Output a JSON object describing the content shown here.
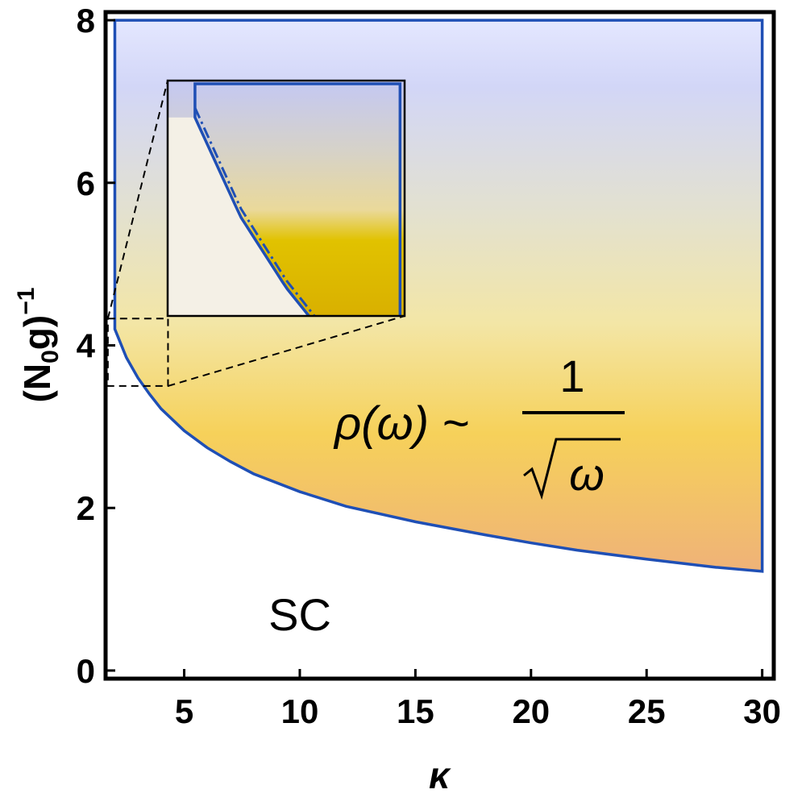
{
  "chart_data": {
    "type": "area",
    "xlabel": "κ",
    "ylabel": "(N",
    "ylabel_sub": "0",
    "ylabel_tail": "g)",
    "ylabel_sup": "−1",
    "xlim": [
      1.6,
      30.5
    ],
    "ylim": [
      -0.1,
      8.1
    ],
    "xticks": [
      "5",
      "10",
      "15",
      "20",
      "25",
      "30"
    ],
    "yticks": [
      "0",
      "2",
      "4",
      "6",
      "8"
    ],
    "x_tick_values": [
      5,
      10,
      15,
      20,
      25,
      30
    ],
    "y_tick_values": [
      0,
      2,
      4,
      6,
      8
    ],
    "grid": false,
    "boundary": {
      "x": [
        2,
        2.5,
        3,
        3.5,
        4,
        5,
        6,
        7,
        8,
        10,
        12,
        15,
        18,
        20,
        22,
        25,
        28,
        30
      ],
      "y": [
        4.2,
        3.85,
        3.6,
        3.4,
        3.22,
        2.95,
        2.74,
        2.57,
        2.42,
        2.2,
        2.02,
        1.83,
        1.67,
        1.57,
        1.48,
        1.37,
        1.27,
        1.22
      ]
    },
    "shaded_region": {
      "x_range": [
        2,
        30
      ],
      "y_top": 8
    },
    "zoom_box": {
      "x_range": [
        1.7,
        4.3
      ],
      "y_range": [
        3.5,
        4.33
      ]
    },
    "annotations": {
      "region_label": "SC",
      "formula_lhs": "ρ(ω) ~",
      "formula_numerator": "1",
      "formula_denominator": "ω"
    },
    "colors": {
      "boundary": "#1f4fb5",
      "gradient_top": "#c9cdf6",
      "gradient_mid": "#f2e3a8",
      "gradient_yellow": "#f5cf55",
      "gradient_bottom": "#f0b27a",
      "inset_yellow": "#dcb800"
    }
  }
}
